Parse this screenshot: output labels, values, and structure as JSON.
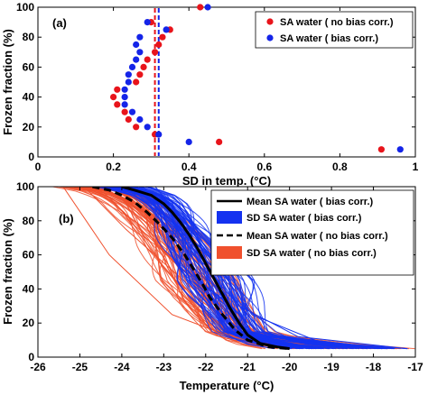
{
  "chart_data": [
    {
      "panel_label": "(a)",
      "type": "scatter",
      "xlabel": "SD in temp. (°C)",
      "ylabel": "Frozen  fraction (%)",
      "xlim": [
        0,
        1
      ],
      "ylim": [
        0,
        100
      ],
      "xticks": [
        "0",
        "0.2",
        "0.4",
        "0.6",
        "0.8",
        "1"
      ],
      "yticks": [
        "0",
        "20",
        "40",
        "60",
        "80",
        "100"
      ],
      "grid": false,
      "legend_position": "top-right",
      "series": [
        {
          "name": "SA water ( no bias corr.)",
          "color": "#e8141b",
          "points": [
            [
              0.43,
              100
            ],
            [
              0.3,
              90
            ],
            [
              0.35,
              85
            ],
            [
              0.33,
              80
            ],
            [
              0.32,
              75
            ],
            [
              0.31,
              70
            ],
            [
              0.29,
              65
            ],
            [
              0.28,
              60
            ],
            [
              0.27,
              55
            ],
            [
              0.26,
              50
            ],
            [
              0.21,
              45
            ],
            [
              0.2,
              40
            ],
            [
              0.21,
              35
            ],
            [
              0.23,
              30
            ],
            [
              0.24,
              25
            ],
            [
              0.26,
              20
            ],
            [
              0.31,
              15
            ],
            [
              0.48,
              10
            ],
            [
              0.91,
              5
            ]
          ]
        },
        {
          "name": "SA water ( bias corr.)",
          "color": "#1424e8",
          "points": [
            [
              0.45,
              100
            ],
            [
              0.29,
              90
            ],
            [
              0.34,
              85
            ],
            [
              0.27,
              80
            ],
            [
              0.26,
              75
            ],
            [
              0.27,
              70
            ],
            [
              0.26,
              65
            ],
            [
              0.25,
              60
            ],
            [
              0.24,
              55
            ],
            [
              0.24,
              50
            ],
            [
              0.23,
              45
            ],
            [
              0.23,
              40
            ],
            [
              0.23,
              35
            ],
            [
              0.25,
              30
            ],
            [
              0.27,
              25
            ],
            [
              0.29,
              20
            ],
            [
              0.32,
              15
            ],
            [
              0.4,
              10
            ],
            [
              0.96,
              5
            ]
          ]
        }
      ],
      "reference_lines": [
        {
          "x": 0.31,
          "color": "#e8141b",
          "style": "dashed"
        },
        {
          "x": 0.32,
          "color": "#1424e8",
          "style": "dashed"
        }
      ]
    },
    {
      "panel_label": "(b)",
      "type": "line",
      "xlabel": "Temperature (°C)",
      "ylabel": "Frozen  fraction (%)",
      "xlim": [
        -26,
        -17
      ],
      "ylim": [
        0,
        100
      ],
      "xticks": [
        "-26",
        "-25",
        "-24",
        "-23",
        "-22",
        "-21",
        "-20",
        "-19",
        "-18",
        "-17"
      ],
      "yticks": [
        "0",
        "20",
        "40",
        "60",
        "80",
        "100"
      ],
      "grid": false,
      "legend_position": "top-right",
      "series": [
        {
          "name": "Mean SA water ( bias corr.)",
          "color": "#000000",
          "style": "solid",
          "x": [
            -24.0,
            -23.7,
            -23.3,
            -23.0,
            -22.8,
            -22.6,
            -22.4,
            -22.2,
            -22.0,
            -21.8,
            -21.6,
            -21.4,
            -21.2,
            -21.0,
            -20.7,
            -20.3,
            -20.0
          ],
          "y": [
            100,
            98,
            95,
            90,
            85,
            79,
            72,
            64,
            55,
            46,
            37,
            28,
            20,
            13,
            8,
            6,
            5
          ]
        },
        {
          "name": "SD SA water ( bias corr.)",
          "color": "#1432f0",
          "style": "band",
          "x": [
            -24.0,
            -23.0,
            -22.5,
            -22.0,
            -21.5,
            -21.0,
            -20.5,
            -20.0
          ],
          "y": [
            100,
            90,
            78,
            55,
            30,
            12,
            7,
            5
          ]
        },
        {
          "name": "Mean SA water ( no bias corr.)",
          "color": "#000000",
          "style": "dashed",
          "x": [
            -24.7,
            -24.3,
            -24.0,
            -23.7,
            -23.4,
            -23.1,
            -22.8,
            -22.5,
            -22.3,
            -22.1,
            -21.9,
            -21.6,
            -21.3,
            -21.0,
            -20.5,
            -20.0
          ],
          "y": [
            100,
            98,
            95,
            91,
            85,
            78,
            70,
            60,
            52,
            44,
            35,
            25,
            16,
            10,
            6,
            5
          ]
        },
        {
          "name": "SD SA water ( no bias corr.)",
          "color": "#f0502d",
          "style": "band",
          "x": [
            -24.7,
            -23.7,
            -23.0,
            -22.5,
            -22.0,
            -21.5,
            -21.0,
            -20.5,
            -20.0
          ],
          "y": [
            100,
            92,
            78,
            62,
            42,
            22,
            10,
            6,
            5
          ]
        }
      ]
    }
  ]
}
